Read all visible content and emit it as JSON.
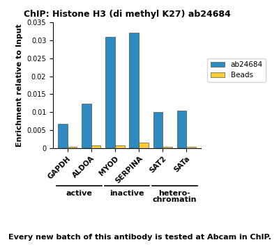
{
  "chart_data": {
    "type": "bar",
    "title": "ChIP: Histone H3 (di methyl K27) ab24684",
    "y_label": "Enrichment relative to Input",
    "categories": [
      "GAPDH",
      "ALDOA",
      "MYOD",
      "SERPINA",
      "SAT2",
      "SATa"
    ],
    "series": [
      {
        "name": "ab24684",
        "color": "#2e8bc0",
        "values": [
          0.0067,
          0.0123,
          0.031,
          0.032,
          0.0101,
          0.0104
        ]
      },
      {
        "name": "Beads",
        "color": "#ffcc33",
        "values": [
          0.0003,
          0.0008,
          0.0008,
          0.0015,
          0.0004,
          0.0003
        ]
      }
    ],
    "ylim": [
      0,
      0.035
    ],
    "yticks": [
      0,
      0.005,
      0.01,
      0.015,
      0.02,
      0.025,
      0.03,
      0.035
    ],
    "grid": false,
    "legend": "right",
    "groups": [
      {
        "label": "active",
        "categories": [
          "GAPDH",
          "ALDOA"
        ]
      },
      {
        "label": "inactive",
        "categories": [
          "MYOD",
          "SERPINA"
        ]
      },
      {
        "label": "hetero-\nchromatin",
        "categories": [
          "SAT2",
          "SATa"
        ]
      }
    ],
    "caption": "Every new batch of this antibody is tested at Abcam in ChIP."
  }
}
